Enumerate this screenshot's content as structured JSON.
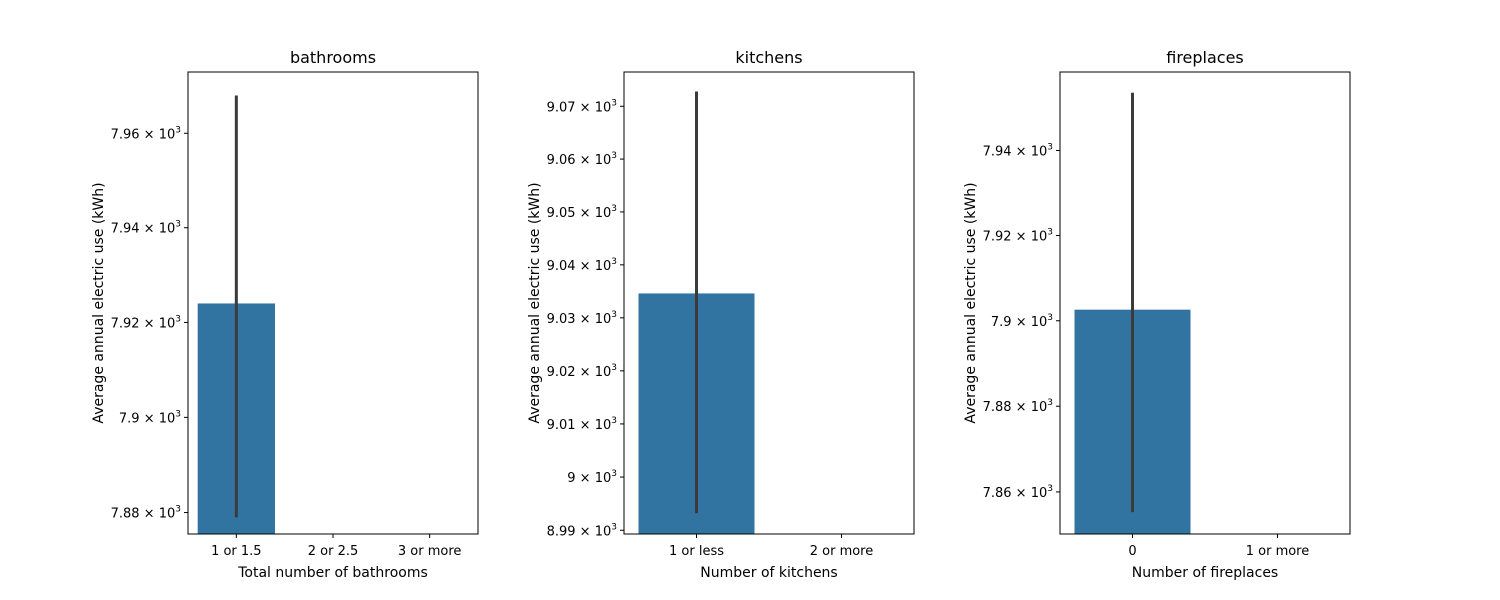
{
  "chart_data": [
    {
      "type": "bar",
      "title": "bathrooms",
      "xlabel": "Total number of bathrooms",
      "ylabel": "Average annual electric use (kWh)",
      "categories": [
        "1 or 1.5",
        "2 or 2.5",
        "3 or more"
      ],
      "values": [
        7924,
        null,
        null
      ],
      "error_bars": [
        [
          7879,
          7968
        ],
        null,
        null
      ],
      "ylim": [
        7875.5,
        7973
      ],
      "yscale": "log",
      "yticks": [
        7880,
        7900,
        7920,
        7940,
        7960
      ],
      "ytick_labels": [
        {
          "mantissa": "7.88",
          "times": "×",
          "base": "10",
          "exp": "3"
        },
        {
          "mantissa": "7.9",
          "times": "×",
          "base": "10",
          "exp": "3"
        },
        {
          "mantissa": "7.92",
          "times": "×",
          "base": "10",
          "exp": "3"
        },
        {
          "mantissa": "7.94",
          "times": "×",
          "base": "10",
          "exp": "3"
        },
        {
          "mantissa": "7.96",
          "times": "×",
          "base": "10",
          "exp": "3"
        }
      ],
      "bar_color": "#3274a1",
      "error_color": "#3b3b3b"
    },
    {
      "type": "bar",
      "title": "kitchens",
      "xlabel": "Number of kitchens",
      "ylabel": "Average annual electric use (kWh)",
      "categories": [
        "1 or less",
        "2 or more"
      ],
      "values": [
        9034.6,
        null
      ],
      "error_bars": [
        [
          8993.2,
          9072.8
        ],
        null
      ],
      "ylim": [
        8989.3,
        9076.5
      ],
      "yscale": "log",
      "yticks": [
        8990,
        9000,
        9010,
        9020,
        9030,
        9040,
        9050,
        9060,
        9070
      ],
      "ytick_labels": [
        {
          "mantissa": "8.99",
          "times": "×",
          "base": "10",
          "exp": "3"
        },
        {
          "mantissa": "9",
          "times": "×",
          "base": "10",
          "exp": "3"
        },
        {
          "mantissa": "9.01",
          "times": "×",
          "base": "10",
          "exp": "3"
        },
        {
          "mantissa": "9.02",
          "times": "×",
          "base": "10",
          "exp": "3"
        },
        {
          "mantissa": "9.03",
          "times": "×",
          "base": "10",
          "exp": "3"
        },
        {
          "mantissa": "9.04",
          "times": "×",
          "base": "10",
          "exp": "3"
        },
        {
          "mantissa": "9.05",
          "times": "×",
          "base": "10",
          "exp": "3"
        },
        {
          "mantissa": "9.06",
          "times": "×",
          "base": "10",
          "exp": "3"
        },
        {
          "mantissa": "9.07",
          "times": "×",
          "base": "10",
          "exp": "3"
        }
      ],
      "bar_color": "#3274a1",
      "error_color": "#3b3b3b"
    },
    {
      "type": "bar",
      "title": "fireplaces",
      "xlabel": "Number of fireplaces",
      "ylabel": "Average annual electric use (kWh)",
      "categories": [
        "0",
        "1 or more"
      ],
      "values": [
        7902.6,
        null
      ],
      "error_bars": [
        [
          7855.3,
          7953.6
        ],
        null
      ],
      "ylim": [
        7850.2,
        7958.5
      ],
      "yscale": "log",
      "yticks": [
        7860,
        7880,
        7900,
        7920,
        7940
      ],
      "ytick_labels": [
        {
          "mantissa": "7.86",
          "times": "×",
          "base": "10",
          "exp": "3"
        },
        {
          "mantissa": "7.88",
          "times": "×",
          "base": "10",
          "exp": "3"
        },
        {
          "mantissa": "7.9",
          "times": "×",
          "base": "10",
          "exp": "3"
        },
        {
          "mantissa": "7.92",
          "times": "×",
          "base": "10",
          "exp": "3"
        },
        {
          "mantissa": "7.94",
          "times": "×",
          "base": "10",
          "exp": "3"
        }
      ],
      "bar_color": "#3274a1",
      "error_color": "#3b3b3b"
    }
  ]
}
